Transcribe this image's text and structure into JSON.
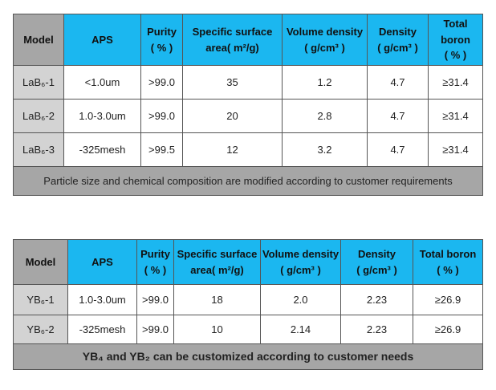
{
  "table1": {
    "headers": {
      "model": "Model",
      "aps": "APS",
      "purity_1": "Purity",
      "purity_2": "( % )",
      "ssa_1": "Specific surface",
      "ssa_2": "area( m²/g)",
      "vol_1": "Volume density",
      "vol_2": "( g/cm³ )",
      "den_1": "Density",
      "den_2": "( g/cm³ )",
      "tb_1": "Total boron",
      "tb_2": "( % )"
    },
    "rows": [
      {
        "model": "LaB₆-1",
        "aps": "<1.0um",
        "purity": ">99.0",
        "ssa": "35",
        "vol": "1.2",
        "den": "4.7",
        "tb": "≥31.4"
      },
      {
        "model": "LaB₆-2",
        "aps": "1.0-3.0um",
        "purity": ">99.0",
        "ssa": "20",
        "vol": "2.8",
        "den": "4.7",
        "tb": "≥31.4"
      },
      {
        "model": "LaB₆-3",
        "aps": "-325mesh",
        "purity": ">99.5",
        "ssa": "12",
        "vol": "3.2",
        "den": "4.7",
        "tb": "≥31.4"
      }
    ],
    "footer": "Particle size and chemical composition are modified according to customer requirements"
  },
  "table2": {
    "headers": {
      "model": "Model",
      "aps": "APS",
      "purity_1": "Purity",
      "purity_2": "( % )",
      "ssa_1": "Specific surface",
      "ssa_2": "area( m²/g)",
      "vol_1": "Volume density",
      "vol_2": "( g/cm³ )",
      "den_1": "Density",
      "den_2": "( g/cm³ )",
      "tb_1": "Total boron",
      "tb_2": "( % )"
    },
    "rows": [
      {
        "model": "YB₆-1",
        "aps": "1.0-3.0um",
        "purity": ">99.0",
        "ssa": "18",
        "vol": "2.0",
        "den": "2.23",
        "tb": "≥26.9"
      },
      {
        "model": "YB₆-2",
        "aps": "-325mesh",
        "purity": ">99.0",
        "ssa": "10",
        "vol": "2.14",
        "den": "2.23",
        "tb": "≥26.9"
      }
    ],
    "footer": "YB₄ and YB₂ can be customized according to customer needs"
  },
  "colors": {
    "header_blue": "#1bb7f0",
    "model_header_gray": "#a6a6a6",
    "model_cell_gray": "#d3d3d3"
  }
}
